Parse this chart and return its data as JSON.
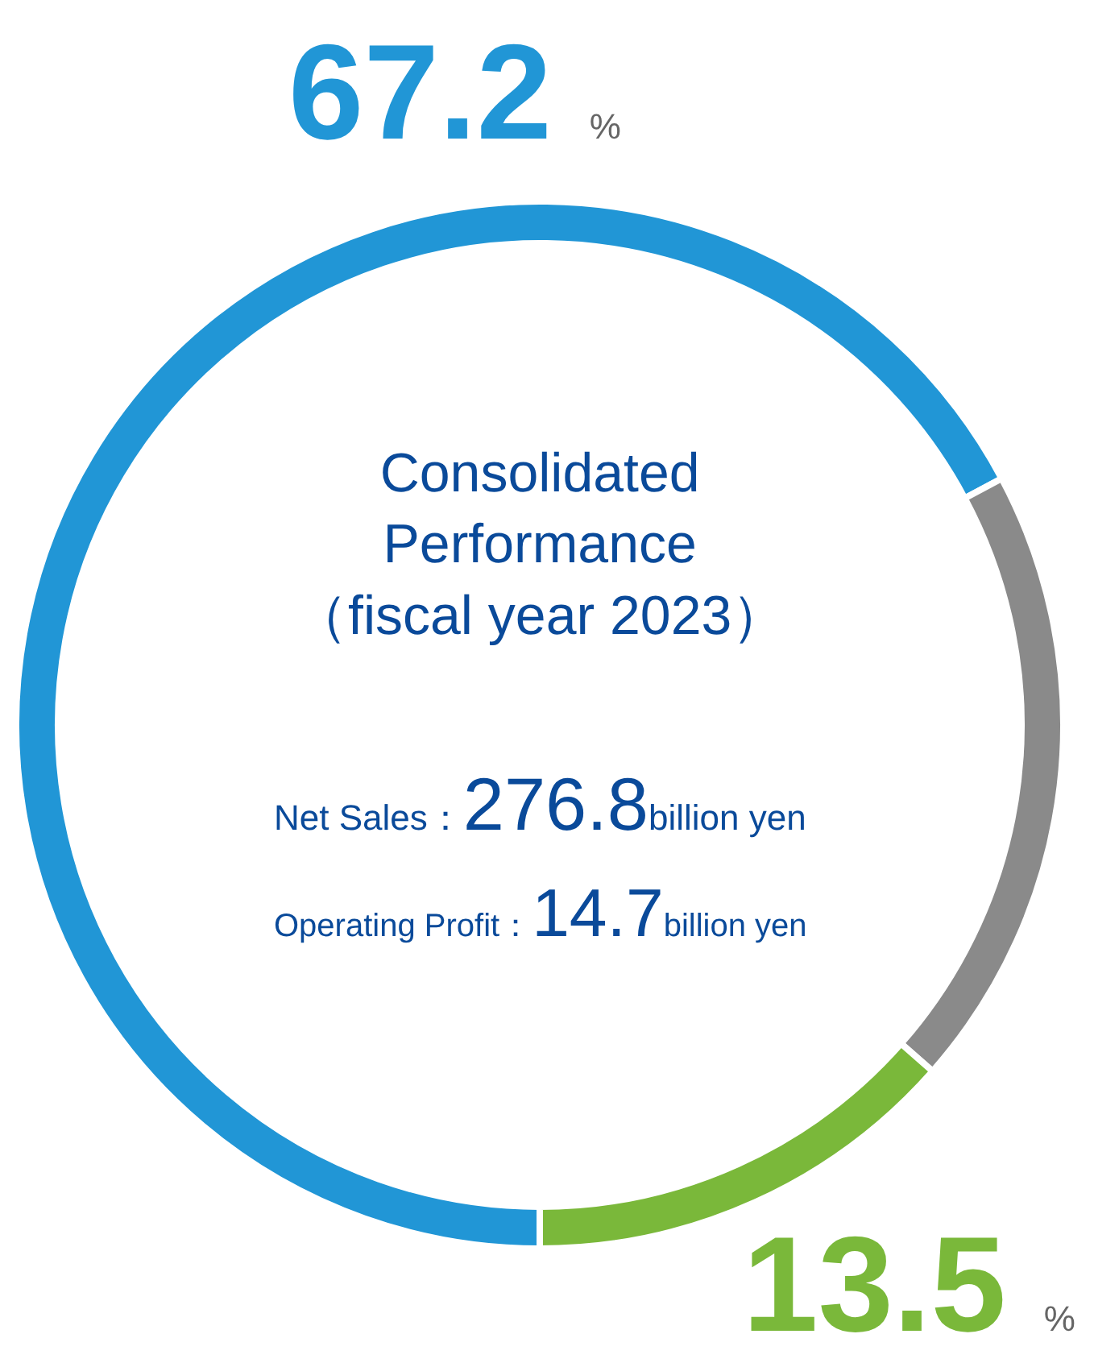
{
  "chart_data": {
    "type": "donut",
    "categories": [
      null,
      null,
      null
    ],
    "values": [
      67.2,
      19.3,
      13.5
    ],
    "colors": [
      "#2196d6",
      "#8a8a8a",
      "#7ab83a"
    ],
    "value_labels": [
      "67.2 %",
      null,
      "13.5 %"
    ],
    "annotations": [
      "Consolidated\nPerformance\n（fiscal year 2023）",
      "Net Sales：276.8billion yen",
      "Operating Profit：14.7billion yen"
    ],
    "legend": false
  }
}
